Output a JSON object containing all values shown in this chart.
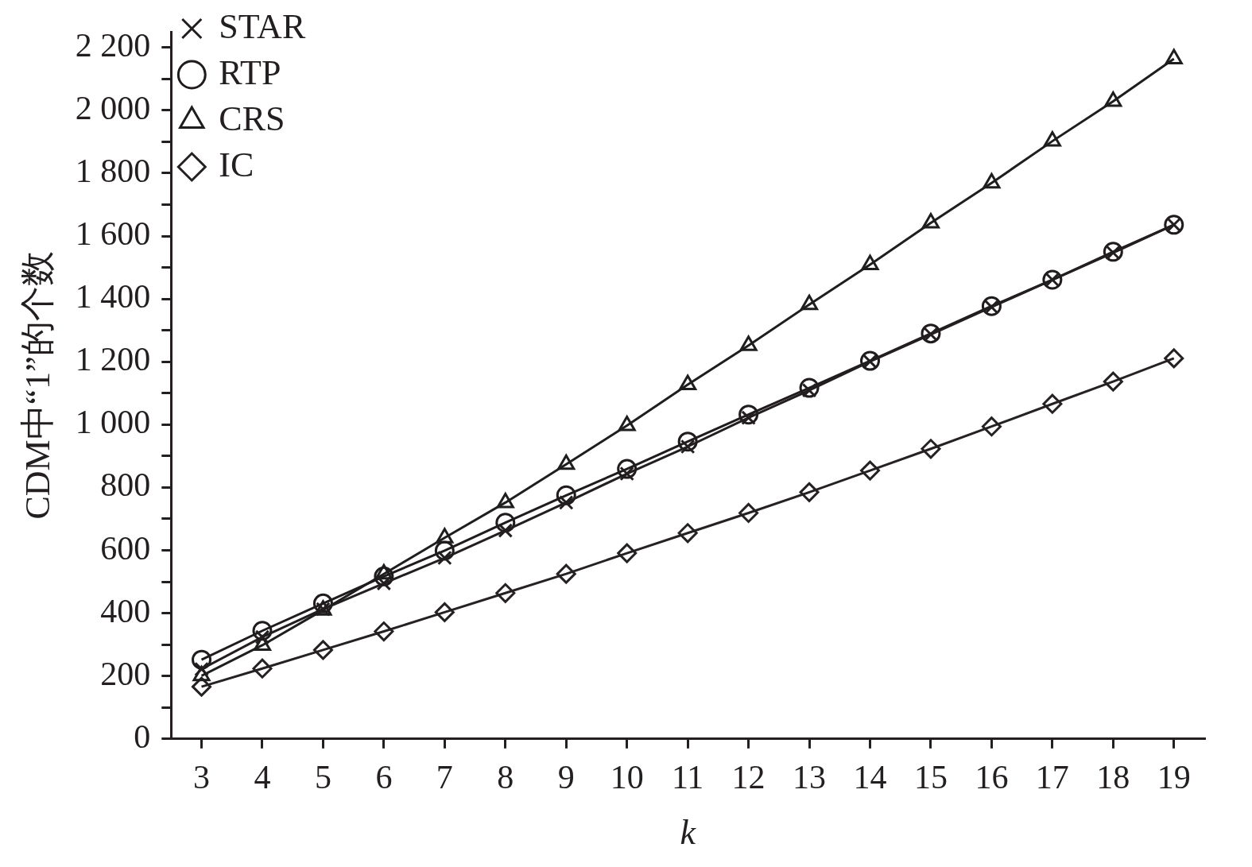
{
  "chart_data": {
    "type": "line",
    "xlabel": "k",
    "ylabel": "CDM中“1”的个数",
    "categories": [
      "3",
      "4",
      "5",
      "6",
      "7",
      "8",
      "9",
      "10",
      "11",
      "12",
      "13",
      "14",
      "15",
      "16",
      "17",
      "18",
      "19"
    ],
    "ylim": [
      0,
      2250
    ],
    "yticks": [
      0,
      {
        "value": 100,
        "label": null
      },
      200,
      {
        "value": 300,
        "label": null
      },
      400,
      {
        "value": 500,
        "label": null
      },
      600,
      {
        "value": 700,
        "label": null
      },
      800,
      {
        "value": 900,
        "label": null
      },
      {
        "value": 1000,
        "label": "1 000"
      },
      {
        "value": 1100,
        "label": null
      },
      {
        "value": 1200,
        "label": "1 200"
      },
      {
        "value": 1300,
        "label": null
      },
      {
        "value": 1400,
        "label": "1 400"
      },
      {
        "value": 1500,
        "label": null
      },
      {
        "value": 1600,
        "label": "1 600"
      },
      {
        "value": 1700,
        "label": null
      },
      {
        "value": 1800,
        "label": "1 800"
      },
      {
        "value": 1900,
        "label": null
      },
      {
        "value": 2000,
        "label": "2 000"
      },
      {
        "value": 2100,
        "label": null
      },
      {
        "value": 2200,
        "label": "2 200"
      }
    ],
    "grid": false,
    "legend": "top left",
    "line_style": "solid",
    "series": [
      {
        "name": "STAR",
        "color": "#231f20",
        "marker": "cross",
        "values": [
          222,
          324,
          413,
          495,
          576,
          663,
          752,
          844,
          930,
          1022,
          1109,
          1201,
          1287,
          1374,
          1461,
          1547,
          1636
        ]
      },
      {
        "name": "RTP",
        "color": "#201c1d",
        "marker": "circle",
        "values": [
          252,
          344,
          431,
          517,
          599,
          688,
          775,
          859,
          946,
          1032,
          1117,
          1203,
          1290,
          1377,
          1461,
          1550,
          1636
        ]
      },
      {
        "name": "CRS",
        "color": "#1e1e1e",
        "marker": "triangle",
        "values": [
          201,
          298,
          410,
          525,
          640,
          752,
          874,
          997,
          1127,
          1252,
          1382,
          1509,
          1642,
          1769,
          1902,
          2029,
          2164
        ]
      },
      {
        "name": "IC",
        "color": "#262223",
        "marker": "diamond",
        "values": [
          166,
          224,
          283,
          342,
          403,
          464,
          525,
          591,
          655,
          719,
          785,
          854,
          923,
          994,
          1066,
          1137,
          1211
        ]
      }
    ]
  }
}
